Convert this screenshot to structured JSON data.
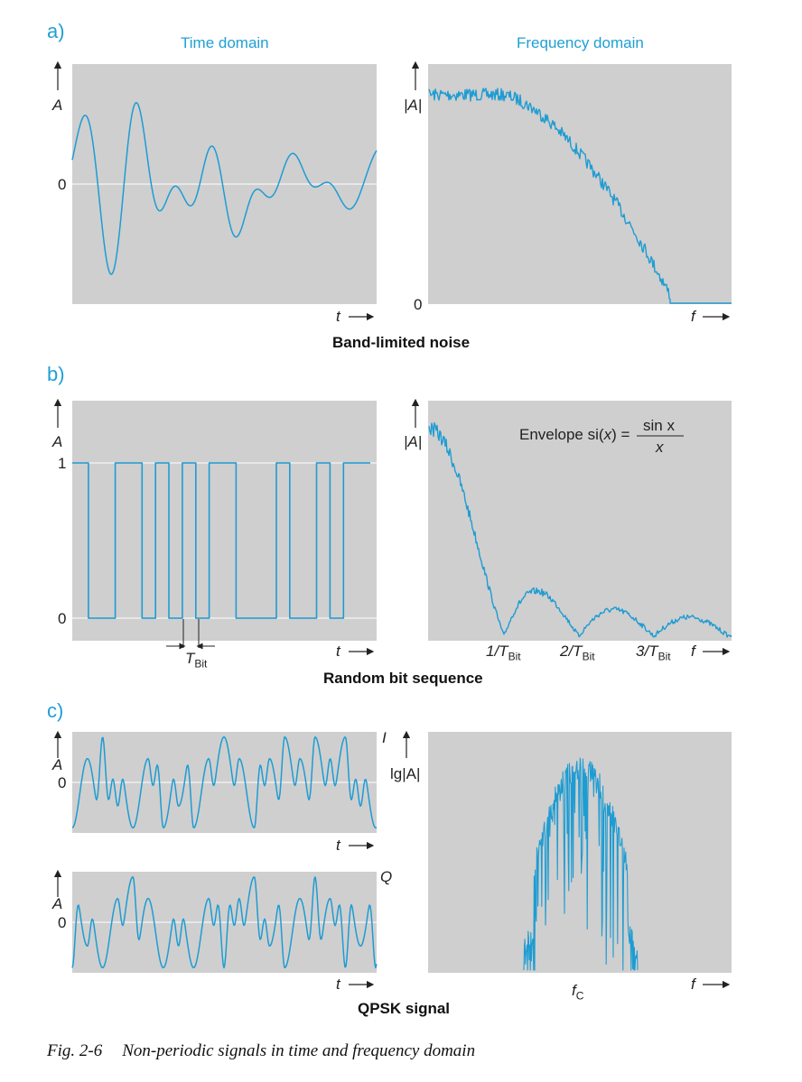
{
  "headers": {
    "time": "Time domain",
    "frequency": "Frequency domain"
  },
  "sections": {
    "a": {
      "label": "a)",
      "caption": "Band-limited noise"
    },
    "b": {
      "label": "b)",
      "caption": "Random bit sequence"
    },
    "c": {
      "label": "c)",
      "caption": "QPSK signal"
    }
  },
  "axes": {
    "amp": "A",
    "mag": "|A|",
    "lgmag": "lg|A|",
    "time": "t",
    "freq": "f",
    "zero": "0",
    "one": "1",
    "i_label": "I",
    "q_label": "Q"
  },
  "bit": {
    "tbit_T": "T",
    "tbit_sub": "Bit"
  },
  "freq_ticks": {
    "t1": "1/T",
    "t2": "2/T",
    "t3": "3/T",
    "sub": "Bit",
    "fc": "f",
    "fc_sub": "C"
  },
  "envelope": {
    "prefix": "Envelope  si(",
    "x": "x",
    "mid": ") =",
    "num": "sin x",
    "den": "x"
  },
  "figure_caption": {
    "number": "Fig. 2-6",
    "text": "Non-periodic signals in time and frequency domain"
  },
  "colors": {
    "signal": "#1e9cd2",
    "panel": "#cfcfcf",
    "accent": "#1fa0d4"
  }
}
